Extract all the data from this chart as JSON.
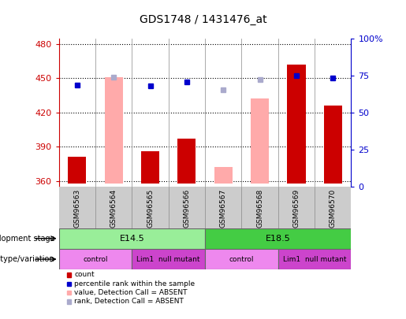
{
  "title": "GDS1748 / 1431476_at",
  "samples": [
    "GSM96563",
    "GSM96564",
    "GSM96565",
    "GSM96566",
    "GSM96567",
    "GSM96568",
    "GSM96569",
    "GSM96570"
  ],
  "ylim_left": [
    355,
    485
  ],
  "yticks_left": [
    360,
    390,
    420,
    450,
    480
  ],
  "yticks_right": [
    0,
    25,
    50,
    75,
    100
  ],
  "ytick_right_labels": [
    "0",
    "25",
    "50",
    "75",
    "100%"
  ],
  "red_bars": {
    "GSM96563": 381,
    "GSM96565": 386,
    "GSM96566": 397,
    "GSM96569": 462,
    "GSM96570": 426
  },
  "pink_bars": {
    "GSM96564": 451,
    "GSM96567": 372,
    "GSM96568": 432
  },
  "blue_squares": {
    "GSM96563": 444,
    "GSM96565": 443,
    "GSM96566": 447,
    "GSM96569": 452,
    "GSM96570": 450
  },
  "light_blue_squares": {
    "GSM96564": 451,
    "GSM96567": 440,
    "GSM96568": 449
  },
  "bar_bottom": 358,
  "colors": {
    "red_bar": "#cc0000",
    "pink_bar": "#ffaaaa",
    "blue_sq": "#0000cc",
    "light_blue_sq": "#aaaacc",
    "E145_color": "#99ee99",
    "E185_color": "#44cc44",
    "control_color": "#ee88ee",
    "mutant_color": "#cc44cc",
    "left_tick_color": "#cc0000",
    "right_tick_color": "#0000cc",
    "xticklabel_bg": "#cccccc"
  },
  "legend_items": [
    {
      "color": "#cc0000",
      "label": "count"
    },
    {
      "color": "#0000cc",
      "label": "percentile rank within the sample"
    },
    {
      "color": "#ffaaaa",
      "label": "value, Detection Call = ABSENT"
    },
    {
      "color": "#aaaacc",
      "label": "rank, Detection Call = ABSENT"
    }
  ],
  "dev_stage_groups": [
    {
      "label": "E14.5",
      "start": 0,
      "end": 4,
      "color": "#99ee99"
    },
    {
      "label": "E18.5",
      "start": 4,
      "end": 8,
      "color": "#44cc44"
    }
  ],
  "geno_groups": [
    {
      "label": "control",
      "start": 0,
      "end": 2,
      "color": "#ee88ee"
    },
    {
      "label": "Lim1  null mutant",
      "start": 2,
      "end": 4,
      "color": "#cc44cc"
    },
    {
      "label": "control",
      "start": 4,
      "end": 6,
      "color": "#ee88ee"
    },
    {
      "label": "Lim1  null mutant",
      "start": 6,
      "end": 8,
      "color": "#cc44cc"
    }
  ]
}
